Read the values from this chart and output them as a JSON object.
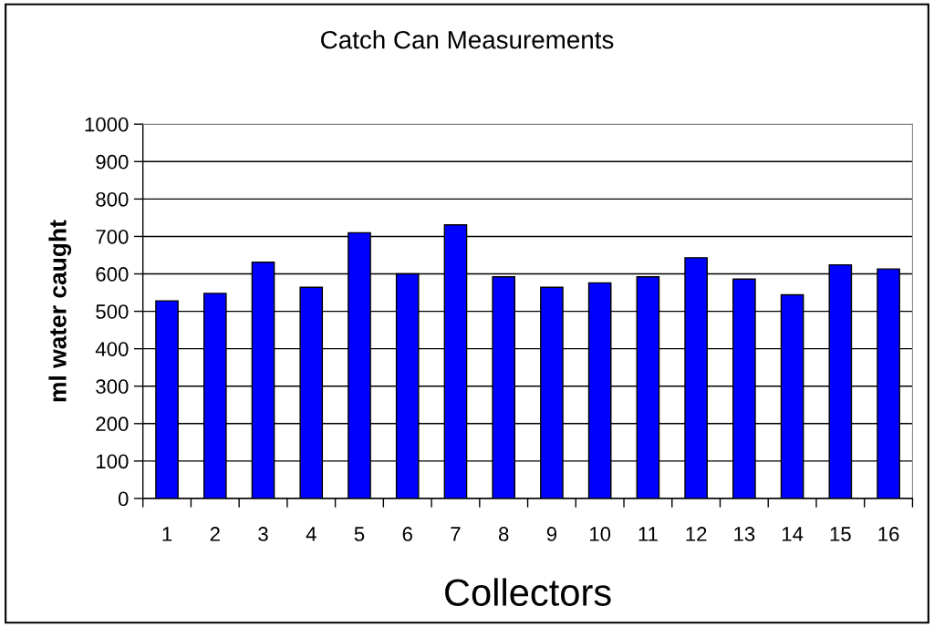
{
  "chart_data": {
    "type": "bar",
    "title": "Catch Can Measurements",
    "xlabel": "Collectors",
    "ylabel": "ml water caught",
    "categories": [
      "1",
      "2",
      "3",
      "4",
      "5",
      "6",
      "7",
      "8",
      "9",
      "10",
      "11",
      "12",
      "13",
      "14",
      "15",
      "16"
    ],
    "values": [
      528,
      548,
      631,
      564,
      710,
      600,
      731,
      592,
      564,
      576,
      592,
      643,
      586,
      544,
      624,
      613
    ],
    "color": "#0000ff",
    "ylim": [
      0,
      1000
    ],
    "yticks": [
      0,
      100,
      200,
      300,
      400,
      500,
      600,
      700,
      800,
      900,
      1000
    ],
    "grid": "y",
    "legend": false
  }
}
